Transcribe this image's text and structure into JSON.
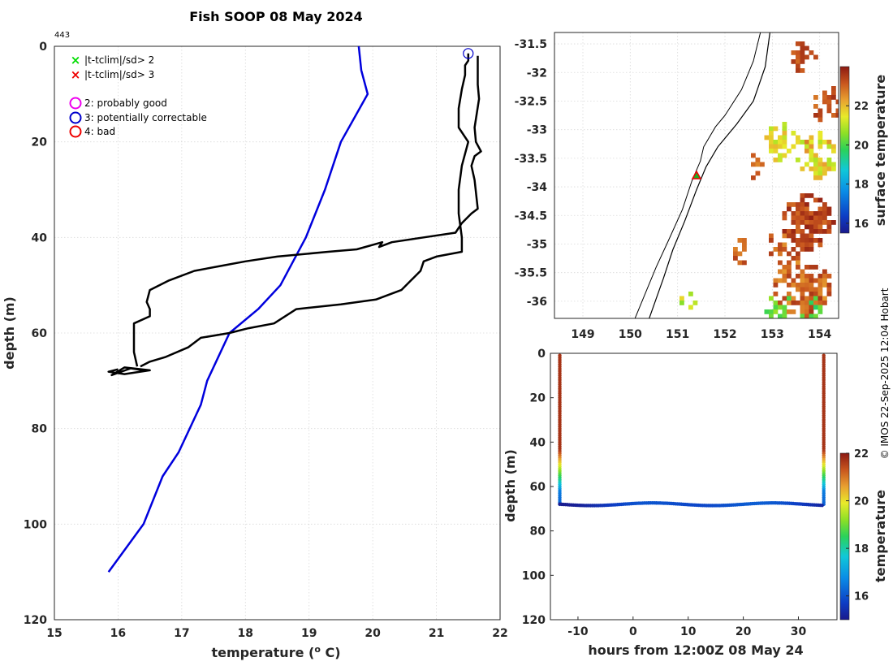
{
  "header": {
    "title": "Fish SOOP 08 May 2024",
    "cast_id": "443"
  },
  "credit": "© IMOS 22-Sep-2025 12:04 Hobart",
  "legend": {
    "flag_items": [
      {
        "label": "|t-tclim|/sd> 2",
        "marker": "cross",
        "color": "#00dd00"
      },
      {
        "label": "|t-tclim|/sd> 3",
        "marker": "cross",
        "color": "#ee0000"
      }
    ],
    "qc_items": [
      {
        "label": "2: probably good",
        "color": "#ee00ee"
      },
      {
        "label": "3: potentially correctable",
        "color": "#0000cc"
      },
      {
        "label": "4: bad",
        "color": "#ee0000"
      }
    ]
  },
  "chart_data": [
    {
      "type": "line",
      "name": "profile",
      "xlabel": "temperature (o C)",
      "ylabel": "depth (m)",
      "xlim": [
        15,
        22
      ],
      "ylim": [
        0,
        120
      ],
      "y_reversed": true,
      "grid": true,
      "x_ticks": [
        "15",
        "16",
        "17",
        "18",
        "19",
        "20",
        "21",
        "22"
      ],
      "y_ticks": [
        "0",
        "20",
        "40",
        "60",
        "80",
        "100",
        "120"
      ],
      "series": [
        {
          "name": "climatology",
          "color": "#0000dd",
          "temperature": [
            19.78,
            19.82,
            19.92,
            19.5,
            19.25,
            18.95,
            18.55,
            18.2,
            17.75,
            17.4,
            17.3,
            16.95,
            16.7,
            16.4,
            15.85
          ],
          "depth": [
            0,
            5,
            10,
            20,
            30,
            40,
            50,
            55,
            60,
            70,
            75,
            85,
            90,
            100,
            110
          ]
        },
        {
          "name": "descent",
          "color": "#000000",
          "temperature": [
            21.65,
            21.65,
            21.67,
            21.6,
            21.62,
            21.7,
            21.6,
            21.55,
            21.6,
            21.65,
            21.55,
            21.4,
            21.3,
            20.8,
            20.3,
            20.1,
            20.15,
            19.75,
            19.3,
            18.5,
            18.0,
            17.6,
            17.2,
            16.8,
            16.5,
            16.45,
            16.5,
            16.5,
            16.25,
            16.25,
            16.3
          ],
          "depth": [
            2,
            8,
            11,
            17,
            20,
            22,
            23,
            25,
            28,
            34,
            35,
            37,
            39,
            40,
            41,
            42,
            41,
            42.5,
            43,
            44,
            45,
            46,
            47,
            49,
            51,
            53.5,
            55,
            56.5,
            58,
            64,
            67
          ]
        },
        {
          "name": "ascent",
          "color": "#000000",
          "temperature": [
            16.35,
            16.5,
            16.75,
            17.1,
            17.3,
            17.75,
            18.05,
            18.45,
            18.8,
            19.5,
            20.05,
            20.45,
            20.6,
            20.75,
            20.8,
            21.0,
            21.4,
            21.4,
            21.35,
            21.35,
            21.4,
            21.5,
            21.35,
            21.35,
            21.4,
            21.45,
            21.45,
            21.5,
            21.5
          ],
          "depth": [
            67,
            66,
            65,
            63,
            61,
            60,
            59,
            58,
            55,
            54,
            53,
            51,
            49,
            47,
            45,
            44,
            43,
            40,
            35,
            30,
            25,
            20,
            17,
            13,
            9,
            6,
            4,
            3,
            1.5
          ]
        },
        {
          "name": "tail_loop",
          "color": "#000000",
          "temperature": [
            16.0,
            15.85,
            16.1,
            16.5,
            16.1,
            15.9,
            16.2,
            16.45
          ],
          "depth": [
            67.6,
            68.1,
            68.6,
            67.8,
            67.2,
            68.8,
            67.4,
            67.9
          ]
        }
      ],
      "qc_marker": {
        "label": "3: potentially correctable",
        "temperature": 21.5,
        "depth": 1.5
      }
    },
    {
      "type": "heatmap",
      "name": "surface map",
      "x_ticks": [
        "149",
        "150",
        "151",
        "152",
        "153",
        "154"
      ],
      "y_ticks": [
        "-31.5",
        "-32",
        "-32.5",
        "-33",
        "-33.5",
        "-34",
        "-34.5",
        "-35",
        "-35.5",
        "-36"
      ],
      "xlim": [
        148.4,
        154.4
      ],
      "ylim": [
        -36.3,
        -31.3
      ],
      "colorbar": {
        "label": "surface temperature",
        "range": [
          15.5,
          24
        ],
        "ticks": [
          "16",
          "18",
          "20",
          "22"
        ]
      },
      "station": {
        "lon": 151.4,
        "lat": -33.8
      },
      "coastline": {
        "lon": [
          152.75,
          152.6,
          152.35,
          152.0,
          151.8,
          151.55,
          151.48,
          151.3,
          151.1,
          150.8,
          150.55,
          150.35,
          150.1
        ],
        "lat": [
          -31.3,
          -31.8,
          -32.3,
          -32.75,
          -32.95,
          -33.3,
          -33.55,
          -33.9,
          -34.4,
          -34.95,
          -35.4,
          -35.8,
          -36.3
        ]
      },
      "isobath": {
        "lon": [
          152.95,
          152.85,
          152.6,
          152.25,
          151.85,
          151.6,
          151.4,
          151.15,
          150.9,
          150.7,
          150.55,
          150.4
        ],
        "lat": [
          -31.3,
          -31.9,
          -32.5,
          -32.9,
          -33.3,
          -33.65,
          -34.05,
          -34.6,
          -35.1,
          -35.6,
          -35.95,
          -36.3
        ]
      }
    },
    {
      "type": "scatter",
      "name": "time series",
      "xlabel": "hours from 12:00Z 08 May 24",
      "ylabel": "depth (m)",
      "xlim": [
        -15,
        37
      ],
      "ylim": [
        0,
        120
      ],
      "y_reversed": true,
      "x_ticks": [
        "-10",
        "0",
        "10",
        "20",
        "30"
      ],
      "y_ticks": [
        "0",
        "20",
        "40",
        "60",
        "80",
        "100",
        "120"
      ],
      "colorbar": {
        "label": "temperature",
        "range": [
          15,
          22
        ],
        "ticks": [
          "16",
          "18",
          "20",
          "22"
        ]
      },
      "descent_hours": -13.3,
      "ascent_hours": 34.6,
      "bottom_depth": 68
    }
  ]
}
